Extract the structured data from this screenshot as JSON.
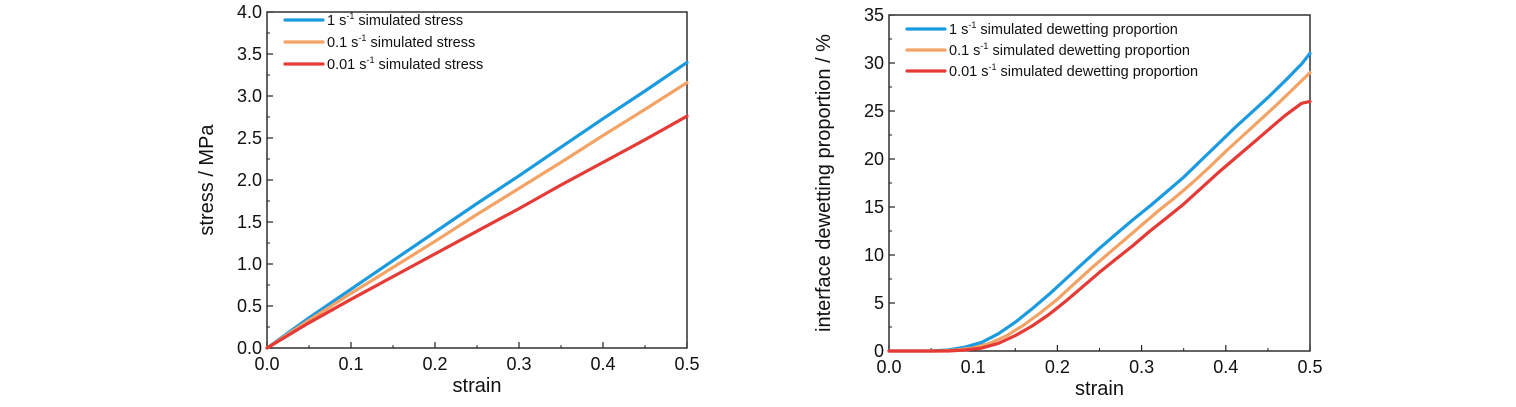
{
  "chart_data": [
    {
      "type": "line",
      "xlabel": "strain",
      "ylabel": "stress / MPa",
      "xlim": [
        0,
        0.5
      ],
      "ylim": [
        0,
        4.0
      ],
      "xticks": [
        "0.0",
        "0.1",
        "0.2",
        "0.3",
        "0.4",
        "0.5"
      ],
      "yticks": [
        "0.0",
        "0.5",
        "1.0",
        "1.5",
        "2.0",
        "2.5",
        "3.0",
        "3.5",
        "4.0"
      ],
      "grid": false,
      "legend_position": "top-left",
      "series": [
        {
          "name": "1 s-1 simulated stress",
          "legend_prefix": "1 s",
          "legend_sup": "-1",
          "legend_suffix": " simulated stress",
          "color": "#1a9be0",
          "x": [
            0,
            0.05,
            0.1,
            0.15,
            0.2,
            0.25,
            0.3,
            0.35,
            0.4,
            0.45,
            0.5
          ],
          "y": [
            0,
            0.36,
            0.7,
            1.04,
            1.38,
            1.72,
            2.05,
            2.39,
            2.73,
            3.06,
            3.4
          ]
        },
        {
          "name": "0.1 s-1 simulated stress",
          "legend_prefix": "0.1 s",
          "legend_sup": "-1",
          "legend_suffix": " simulated stress",
          "color": "#f2a365",
          "x": [
            0,
            0.05,
            0.1,
            0.15,
            0.2,
            0.25,
            0.3,
            0.35,
            0.4,
            0.45,
            0.5
          ],
          "y": [
            0,
            0.33,
            0.65,
            0.96,
            1.27,
            1.59,
            1.9,
            2.21,
            2.53,
            2.84,
            3.16
          ]
        },
        {
          "name": "0.01 s-1 simulated stress",
          "legend_prefix": "0.01 s",
          "legend_sup": "-1",
          "legend_suffix": " simulated stress",
          "color": "#e53a35",
          "x": [
            0,
            0.05,
            0.1,
            0.15,
            0.2,
            0.25,
            0.3,
            0.35,
            0.4,
            0.45,
            0.5
          ],
          "y": [
            0,
            0.3,
            0.58,
            0.85,
            1.12,
            1.39,
            1.66,
            1.94,
            2.21,
            2.48,
            2.76
          ]
        }
      ]
    },
    {
      "type": "line",
      "xlabel": "strain",
      "ylabel": "interface dewetting proportion / %",
      "xlim": [
        0,
        0.5
      ],
      "ylim": [
        0,
        35
      ],
      "xticks": [
        "0.0",
        "0.1",
        "0.2",
        "0.3",
        "0.4",
        "0.5"
      ],
      "yticks": [
        "0",
        "5",
        "10",
        "15",
        "20",
        "25",
        "30",
        "35"
      ],
      "grid": false,
      "legend_position": "top-left",
      "series": [
        {
          "name": "1 s-1 simulated dewetting proportion",
          "legend_prefix": "1 s",
          "legend_sup": "-1",
          "legend_suffix": " simulated dewetting proportion",
          "color": "#1a9be0",
          "x": [
            0,
            0.05,
            0.07,
            0.09,
            0.11,
            0.13,
            0.15,
            0.17,
            0.19,
            0.21,
            0.23,
            0.25,
            0.27,
            0.29,
            0.31,
            0.33,
            0.35,
            0.37,
            0.39,
            0.41,
            0.43,
            0.45,
            0.47,
            0.49,
            0.5
          ],
          "y": [
            0,
            0,
            0.1,
            0.4,
            0.9,
            1.8,
            3.0,
            4.4,
            5.9,
            7.5,
            9.1,
            10.7,
            12.2,
            13.7,
            15.1,
            16.6,
            18.1,
            19.8,
            21.5,
            23.2,
            24.8,
            26.4,
            28.1,
            29.9,
            31.0
          ]
        },
        {
          "name": "0.1 s-1 simulated dewetting proportion",
          "legend_prefix": "0.1 s",
          "legend_sup": "-1",
          "legend_suffix": " simulated dewetting proportion",
          "color": "#f2a365",
          "x": [
            0,
            0.06,
            0.08,
            0.1,
            0.12,
            0.14,
            0.16,
            0.18,
            0.2,
            0.22,
            0.24,
            0.26,
            0.28,
            0.3,
            0.32,
            0.34,
            0.36,
            0.38,
            0.4,
            0.42,
            0.44,
            0.46,
            0.48,
            0.5
          ],
          "y": [
            0,
            0,
            0.1,
            0.3,
            0.8,
            1.6,
            2.7,
            4.0,
            5.4,
            7.0,
            8.6,
            10.1,
            11.6,
            13.1,
            14.6,
            16.0,
            17.5,
            19.1,
            20.8,
            22.4,
            24.0,
            25.6,
            27.3,
            29.0
          ]
        },
        {
          "name": "0.01 s-1 simulated dewetting proportion",
          "legend_prefix": "0.01 s",
          "legend_sup": "-1",
          "legend_suffix": " simulated dewetting proportion",
          "color": "#e53a35",
          "x": [
            0,
            0.07,
            0.09,
            0.11,
            0.13,
            0.15,
            0.17,
            0.19,
            0.21,
            0.23,
            0.25,
            0.27,
            0.29,
            0.31,
            0.33,
            0.35,
            0.37,
            0.39,
            0.41,
            0.43,
            0.45,
            0.47,
            0.49,
            0.5
          ],
          "y": [
            0,
            0,
            0.1,
            0.3,
            0.8,
            1.6,
            2.6,
            3.8,
            5.2,
            6.7,
            8.2,
            9.6,
            11.0,
            12.5,
            13.9,
            15.3,
            16.9,
            18.5,
            20.0,
            21.5,
            23.0,
            24.5,
            25.8,
            26.0
          ]
        }
      ]
    }
  ]
}
